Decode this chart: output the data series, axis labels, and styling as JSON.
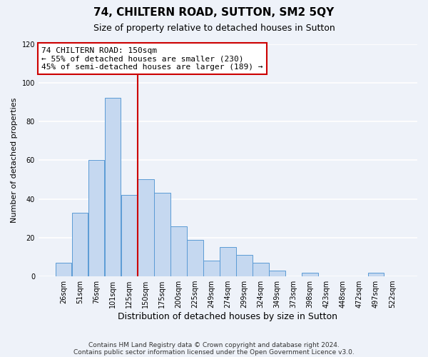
{
  "title": "74, CHILTERN ROAD, SUTTON, SM2 5QY",
  "subtitle": "Size of property relative to detached houses in Sutton",
  "xlabel": "Distribution of detached houses by size in Sutton",
  "ylabel": "Number of detached properties",
  "footer_lines": [
    "Contains HM Land Registry data © Crown copyright and database right 2024.",
    "Contains public sector information licensed under the Open Government Licence v3.0."
  ],
  "categories": [
    "26sqm",
    "51sqm",
    "76sqm",
    "101sqm",
    "125sqm",
    "150sqm",
    "175sqm",
    "200sqm",
    "225sqm",
    "249sqm",
    "274sqm",
    "299sqm",
    "324sqm",
    "349sqm",
    "373sqm",
    "398sqm",
    "423sqm",
    "448sqm",
    "472sqm",
    "497sqm",
    "522sqm"
  ],
  "values": [
    7,
    33,
    60,
    92,
    42,
    50,
    43,
    26,
    19,
    8,
    15,
    11,
    7,
    3,
    0,
    2,
    0,
    0,
    0,
    2,
    0
  ],
  "bar_color": "#c5d8f0",
  "bar_edge_color": "#5b9bd5",
  "annotation_line_index": 5,
  "annotation_text_lines": [
    "74 CHILTERN ROAD: 150sqm",
    "← 55% of detached houses are smaller (230)",
    "45% of semi-detached houses are larger (189) →"
  ],
  "annotation_box_color": "#ffffff",
  "annotation_box_edge_color": "#cc0000",
  "vline_color": "#cc0000",
  "ylim": [
    0,
    120
  ],
  "yticks": [
    0,
    20,
    40,
    60,
    80,
    100,
    120
  ],
  "background_color": "#eef2f9",
  "grid_color": "#ffffff",
  "title_fontsize": 11,
  "subtitle_fontsize": 9,
  "xlabel_fontsize": 9,
  "ylabel_fontsize": 8,
  "tick_fontsize": 7,
  "footer_fontsize": 6.5
}
